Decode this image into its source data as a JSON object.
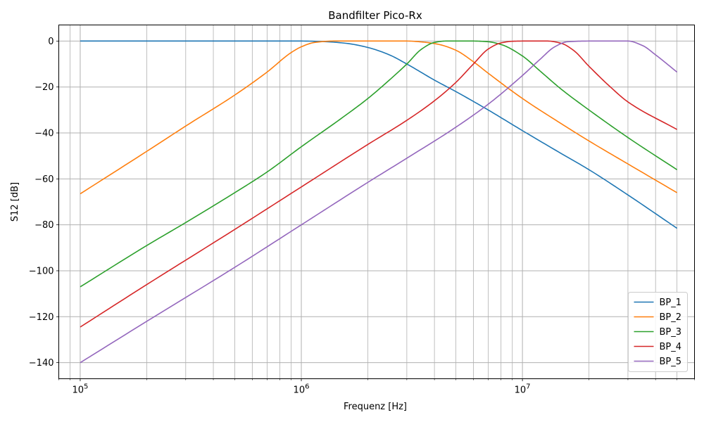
{
  "chart_data": {
    "type": "line",
    "title": "Bandfilter Pico-Rx",
    "xlabel": "Frequenz [Hz]",
    "ylabel": "S12 [dB]",
    "xscale": "log",
    "xlim": [
      80000,
      60000000
    ],
    "ylim": [
      -147,
      7
    ],
    "xticks": [
      {
        "value": 100000,
        "base": "10",
        "exp": "5"
      },
      {
        "value": 1000000,
        "base": "10",
        "exp": "6"
      },
      {
        "value": 10000000,
        "base": "10",
        "exp": "7"
      }
    ],
    "yticks": [
      {
        "value": 0,
        "label": "0"
      },
      {
        "value": -20,
        "label": "−20"
      },
      {
        "value": -40,
        "label": "−40"
      },
      {
        "value": -60,
        "label": "−60"
      },
      {
        "value": -80,
        "label": "−80"
      },
      {
        "value": -100,
        "label": "−100"
      },
      {
        "value": -120,
        "label": "−120"
      },
      {
        "value": -140,
        "label": "−140"
      }
    ],
    "grid": true,
    "legend_position": "bottom-right",
    "series": [
      {
        "name": "BP_1",
        "color": "#1f77b4",
        "x": [
          100000,
          500000,
          1000000,
          1300000,
          1600000,
          2000000,
          2500000,
          3000000,
          4000000,
          5000000,
          7000000,
          10000000,
          15000000,
          20000000,
          30000000,
          50000000
        ],
        "y": [
          0,
          0,
          0,
          -0.3,
          -1,
          -2.8,
          -6,
          -10,
          -17,
          -22,
          -30,
          -39,
          -49,
          -56,
          -67,
          -81.5
        ]
      },
      {
        "name": "BP_2",
        "color": "#ff7f0e",
        "x": [
          100000,
          200000,
          300000,
          500000,
          700000,
          900000,
          1000000,
          1150000,
          1400000,
          2000000,
          3000000,
          3600000,
          4200000,
          5000000,
          6000000,
          7000000,
          10000000,
          15000000,
          20000000,
          30000000,
          50000000
        ],
        "y": [
          -66.5,
          -48,
          -37,
          -23.5,
          -13.5,
          -5,
          -2.5,
          -0.6,
          0,
          0,
          0,
          -0.5,
          -1.5,
          -4,
          -9,
          -14,
          -25,
          -36,
          -43.5,
          -53.5,
          -66
        ]
      },
      {
        "name": "BP_3",
        "color": "#2ca02c",
        "x": [
          100000,
          200000,
          300000,
          500000,
          700000,
          1000000,
          1500000,
          2000000,
          2500000,
          3000000,
          3500000,
          4000000,
          4500000,
          6000000,
          7000000,
          8000000,
          10000000,
          12000000,
          15000000,
          20000000,
          30000000,
          50000000
        ],
        "y": [
          -107,
          -89,
          -79,
          -66,
          -57,
          -46,
          -34,
          -25,
          -17,
          -10,
          -3.5,
          -0.6,
          0,
          0,
          -0.3,
          -1.5,
          -6.5,
          -13,
          -21,
          -30,
          -42,
          -56
        ]
      },
      {
        "name": "BP_4",
        "color": "#d62728",
        "x": [
          100000,
          200000,
          500000,
          1000000,
          2000000,
          3000000,
          4000000,
          5000000,
          6000000,
          7000000,
          8000000,
          9000000,
          10000000,
          13000000,
          15000000,
          17000000,
          20000000,
          25000000,
          30000000,
          50000000
        ],
        "y": [
          -124.5,
          -106,
          -82,
          -63.5,
          -45,
          -34.5,
          -26,
          -18,
          -10,
          -3.5,
          -0.8,
          -0.1,
          0,
          0,
          -1,
          -4,
          -11,
          -20,
          -26.5,
          -38.5
        ]
      },
      {
        "name": "BP_5",
        "color": "#9467bd",
        "x": [
          100000,
          200000,
          500000,
          1000000,
          2000000,
          3000000,
          5000000,
          7000000,
          10000000,
          12000000,
          14000000,
          16000000,
          20000000,
          30000000,
          35000000,
          40000000,
          50000000
        ],
        "y": [
          -140,
          -122,
          -98.5,
          -80,
          -61.5,
          -51,
          -37.5,
          -27.5,
          -15,
          -8,
          -2.5,
          -0.3,
          0,
          0,
          -2,
          -6,
          -13.5
        ]
      }
    ]
  }
}
